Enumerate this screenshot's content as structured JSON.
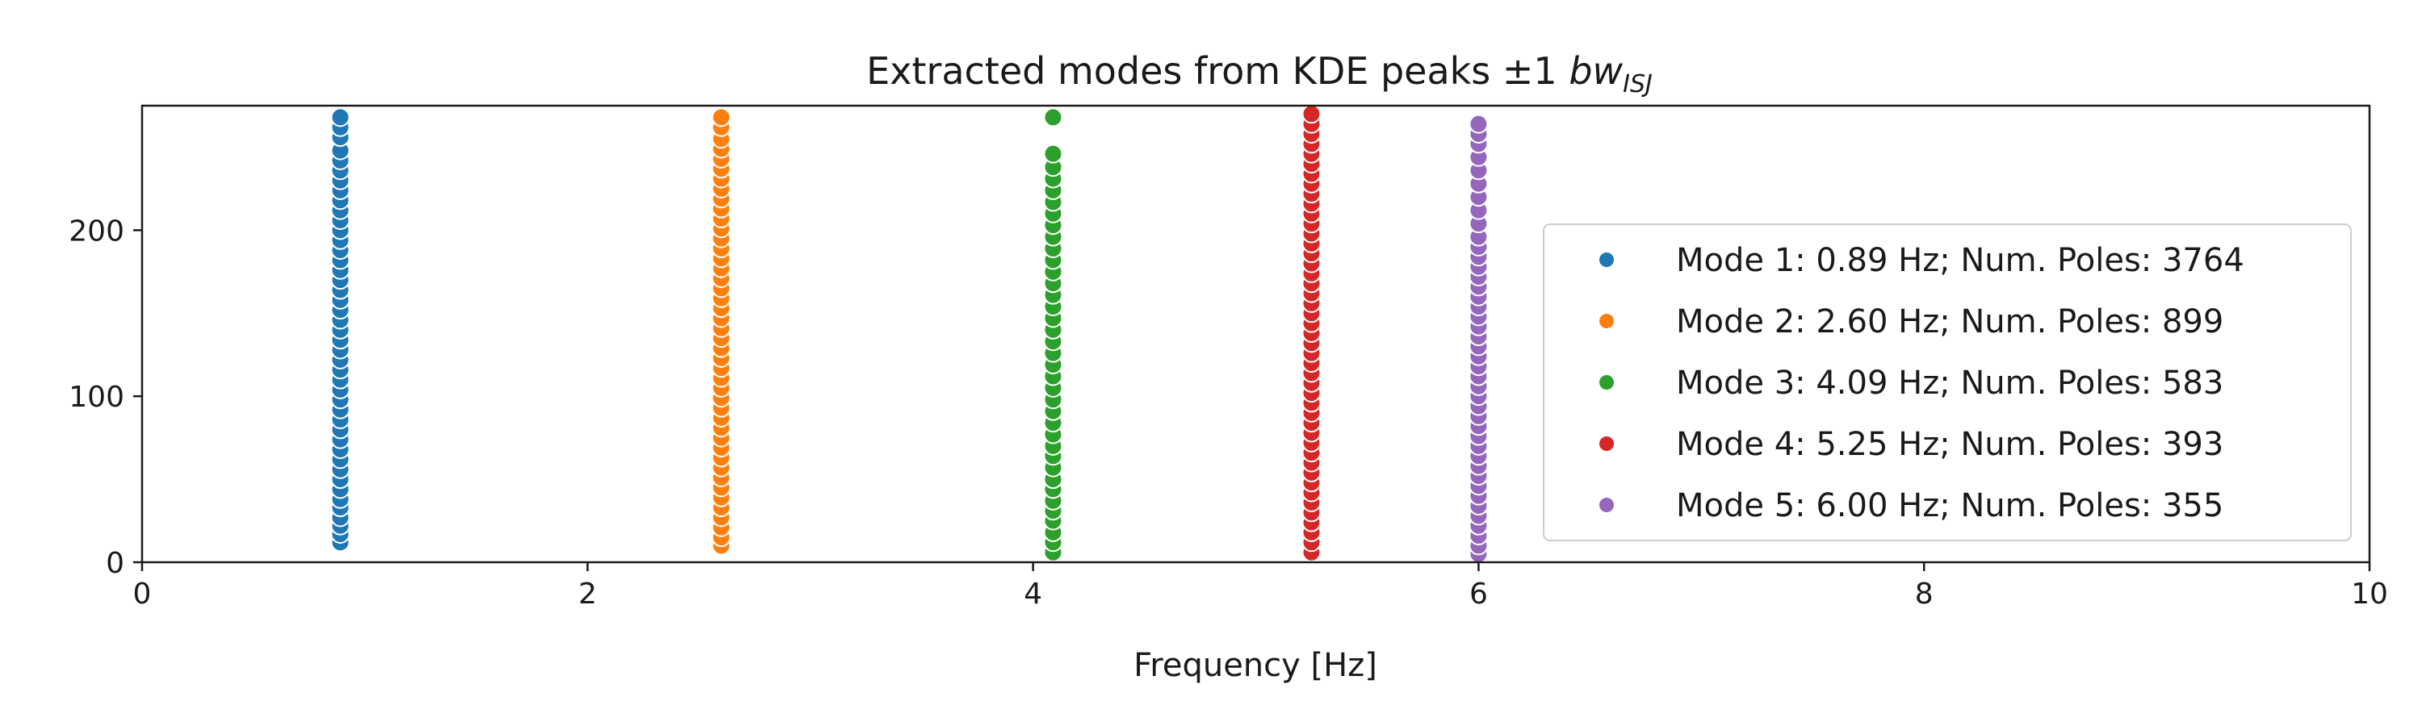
{
  "chart_data": {
    "type": "scatter",
    "title": "Extracted modes from KDE peaks ±1 ",
    "title_math": "bw",
    "title_subscript": "ISJ",
    "xlabel": "Frequency [Hz]",
    "ylabel": "",
    "xlim": [
      0,
      10
    ],
    "ylim": [
      0,
      275
    ],
    "xticks": [
      0,
      2,
      4,
      6,
      8,
      10
    ],
    "xtick_labels": [
      "0",
      "2",
      "4",
      "6",
      "8",
      "10"
    ],
    "yticks": [
      0,
      100,
      200
    ],
    "ytick_labels": [
      "0",
      "100",
      "200"
    ],
    "grid": false,
    "legend_position": "right",
    "series": [
      {
        "name": "Mode 1: 0.89 Hz; Num. Poles: 3764",
        "color": "#1f77b4",
        "x": 0.89,
        "y": [
          12,
          17,
          22,
          27,
          33,
          38,
          44,
          50,
          56,
          62,
          68,
          74,
          80,
          86,
          92,
          98,
          104,
          110,
          116,
          122,
          128,
          134,
          140,
          146,
          152,
          158,
          164,
          170,
          176,
          182,
          188,
          194,
          200,
          206,
          212,
          218,
          224,
          230,
          236,
          242,
          248,
          256,
          262,
          268
        ]
      },
      {
        "name": "Mode 2: 2.60 Hz; Num. Poles: 899",
        "color": "#ff7f0e",
        "x": 2.6,
        "y": [
          10,
          15,
          21,
          27,
          33,
          39,
          45,
          51,
          57,
          63,
          69,
          75,
          81,
          87,
          93,
          99,
          105,
          111,
          117,
          123,
          129,
          135,
          141,
          147,
          153,
          159,
          165,
          171,
          177,
          183,
          189,
          195,
          201,
          207,
          213,
          219,
          225,
          231,
          237,
          243,
          249,
          255,
          262,
          268
        ]
      },
      {
        "name": "Mode 3: 4.09 Hz; Num. Poles: 583",
        "color": "#2ca02c",
        "x": 4.09,
        "y": [
          6,
          12,
          18,
          25,
          31,
          37,
          44,
          50,
          57,
          64,
          70,
          77,
          84,
          91,
          98,
          105,
          112,
          119,
          126,
          133,
          140,
          147,
          154,
          161,
          168,
          175,
          182,
          189,
          196,
          203,
          210,
          217,
          224,
          231,
          238,
          246,
          268
        ]
      },
      {
        "name": "Mode 4: 5.25 Hz; Num. Poles: 393",
        "color": "#d62728",
        "x": 5.25,
        "y": [
          6,
          12,
          18,
          24,
          30,
          36,
          42,
          48,
          54,
          60,
          66,
          72,
          78,
          84,
          90,
          96,
          102,
          108,
          114,
          120,
          126,
          132,
          138,
          144,
          150,
          156,
          162,
          168,
          174,
          180,
          186,
          192,
          198,
          204,
          210,
          216,
          222,
          228,
          234,
          240,
          246,
          252,
          258,
          264,
          270
        ]
      },
      {
        "name": "Mode 5: 6.00 Hz; Num. Poles: 355",
        "color": "#9467bd",
        "x": 6.0,
        "y": [
          5,
          10,
          16,
          22,
          28,
          34,
          40,
          46,
          52,
          58,
          64,
          70,
          76,
          82,
          88,
          94,
          100,
          106,
          112,
          118,
          124,
          130,
          136,
          142,
          148,
          154,
          160,
          166,
          172,
          178,
          184,
          190,
          196,
          204,
          212,
          220,
          228,
          236,
          244,
          252,
          258,
          264
        ]
      }
    ]
  }
}
